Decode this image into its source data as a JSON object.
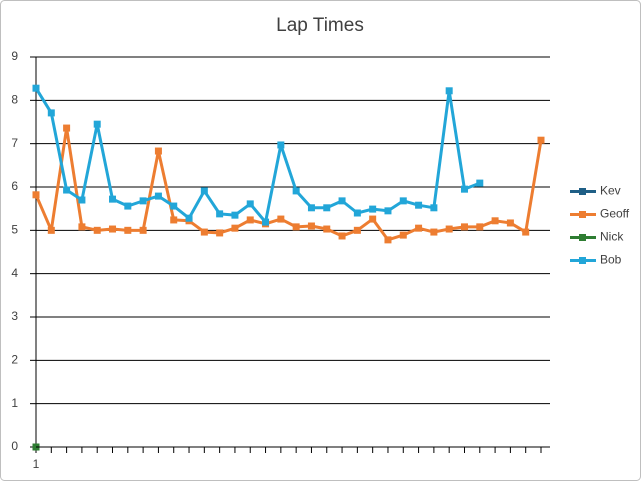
{
  "chart_data": {
    "type": "line",
    "title": "Lap Times",
    "categories": [
      "1",
      null,
      null,
      null,
      null,
      null,
      null,
      null,
      null,
      null,
      null,
      null,
      null,
      null,
      null,
      null,
      null,
      null,
      null,
      null,
      null,
      null,
      null,
      null,
      null,
      null,
      null,
      null,
      null,
      null,
      null,
      null,
      null,
      null
    ],
    "series": [
      {
        "name": "Kev",
        "color": "#1f5f86",
        "values": [
          0,
          null,
          null,
          null,
          null,
          null,
          null,
          null,
          null,
          null,
          null,
          null,
          null,
          null,
          null,
          null,
          null,
          null,
          null,
          null,
          null,
          null,
          null,
          null,
          null,
          null,
          null,
          null,
          null,
          null,
          null,
          null,
          null,
          null
        ]
      },
      {
        "name": "Geoff",
        "color": "#ed7d31",
        "values": [
          5.82,
          5.0,
          7.36,
          5.08,
          5.0,
          5.03,
          5.0,
          5.0,
          6.83,
          5.24,
          5.22,
          4.96,
          4.94,
          5.05,
          5.24,
          5.15,
          5.26,
          5.08,
          5.1,
          5.03,
          4.87,
          5.0,
          5.26,
          4.78,
          4.89,
          5.05,
          4.96,
          5.03,
          5.08,
          5.08,
          5.22,
          5.17,
          4.96,
          7.08
        ]
      },
      {
        "name": "Nick",
        "color": "#2e7d32",
        "values": [
          0,
          null,
          null,
          null,
          null,
          null,
          null,
          null,
          null,
          null,
          null,
          null,
          null,
          null,
          null,
          null,
          null,
          null,
          null,
          null,
          null,
          null,
          null,
          null,
          null,
          null,
          null,
          null,
          null,
          null,
          null,
          null,
          null,
          null
        ]
      },
      {
        "name": "Bob",
        "color": "#22a6d8",
        "values": [
          8.28,
          7.71,
          5.93,
          5.7,
          7.45,
          5.72,
          5.56,
          5.68,
          5.79,
          5.56,
          5.28,
          5.91,
          5.38,
          5.35,
          5.61,
          5.19,
          6.97,
          5.91,
          5.52,
          5.52,
          5.68,
          5.4,
          5.49,
          5.45,
          5.68,
          5.58,
          5.52,
          8.22,
          5.95,
          6.09,
          null,
          null,
          null,
          null
        ]
      }
    ],
    "ylim": [
      0,
      9
    ],
    "yticks": [
      0,
      1,
      2,
      3,
      4,
      5,
      6,
      7,
      8,
      9
    ],
    "grid": true,
    "legend": "right"
  }
}
